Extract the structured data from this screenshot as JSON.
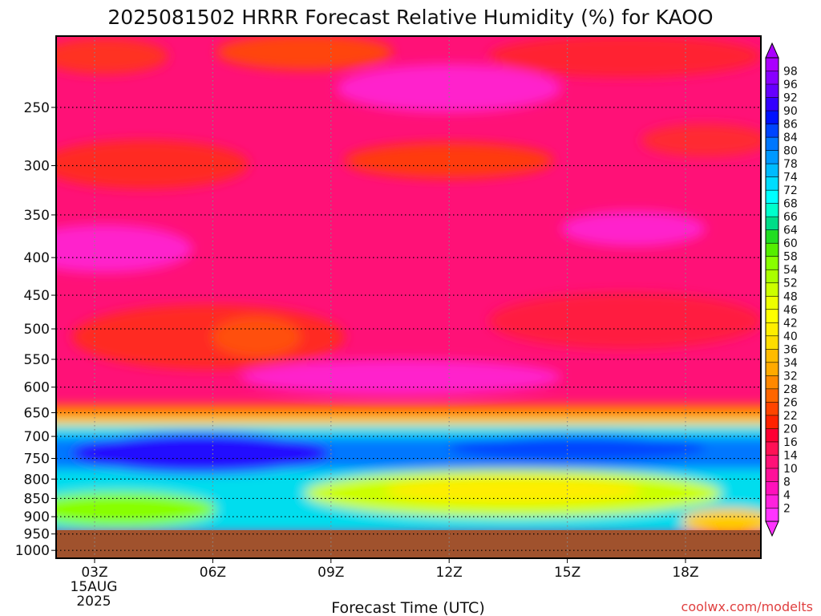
{
  "chart_data": {
    "type": "heatmap",
    "title": "2025081502 HRRR Forecast Relative Humidity (%) for KAOO",
    "xlabel": "Forecast Time (UTC)",
    "ylabel": "",
    "x_ticks": [
      "03Z",
      "06Z",
      "09Z",
      "12Z",
      "15Z",
      "18Z"
    ],
    "x_date_label": "15AUG",
    "x_year_label": "2025",
    "y_ticks": [
      250,
      300,
      350,
      400,
      450,
      500,
      550,
      600,
      650,
      700,
      750,
      800,
      850,
      900,
      950,
      1000
    ],
    "y_scale": "log",
    "ylim": [
      1025,
      200
    ],
    "colorbar_levels": [
      2,
      4,
      8,
      10,
      14,
      16,
      20,
      22,
      26,
      28,
      32,
      34,
      36,
      40,
      42,
      46,
      48,
      52,
      54,
      58,
      60,
      64,
      66,
      68,
      72,
      74,
      78,
      80,
      84,
      86,
      90,
      92,
      96,
      98
    ],
    "colorbar_colors": [
      "#ff33ff",
      "#ff22dd",
      "#ff11bb",
      "#ff1199",
      "#ff1177",
      "#ff1155",
      "#ff0033",
      "#ff2200",
      "#ff4400",
      "#ff6600",
      "#ff8800",
      "#ffaa00",
      "#ffbb00",
      "#ffdd00",
      "#ffee00",
      "#ffff00",
      "#eeff00",
      "#ccff00",
      "#aaff00",
      "#88ff00",
      "#55ee00",
      "#22dd22",
      "#00dd88",
      "#00ffcc",
      "#00ffff",
      "#00ddff",
      "#00bbff",
      "#0099ff",
      "#0077ff",
      "#0044ff",
      "#0011ff",
      "#3300ff",
      "#6600ff",
      "#8800ff",
      "#aa00ff"
    ],
    "ground_color": "#a0522d",
    "surface_pressure": 965,
    "grid": true,
    "credit": "coolwx.com/modelts"
  }
}
